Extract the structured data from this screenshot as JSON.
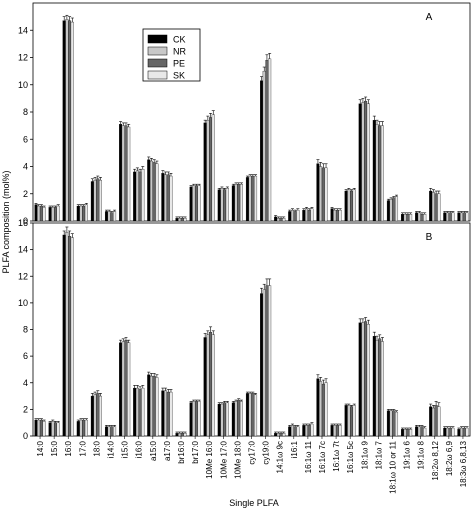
{
  "chart_data": {
    "type": "bar",
    "xlabel": "Single PLFA",
    "ylabel": "PLFA composition (mol%)",
    "categories": [
      "14:0",
      "15:0",
      "16:0",
      "17:0",
      "18:0",
      "i14:0",
      "i15:0",
      "i16:0",
      "a15:0",
      "a17:0",
      "br16:0",
      "br17:0",
      "10Me 16:0",
      "10Me 17:0",
      "10Me 18:0",
      "cy17:0",
      "cy19:0",
      "14:1ω 9c",
      "i16:1",
      "16:1ω 11",
      "16:1ω 7c",
      "16:1ω 7t",
      "16:1ω 5c",
      "18:1ω 9",
      "18:1ω 7",
      "18:1ω 10 or 11",
      "19:1ω 6",
      "19:1ω 8",
      "18:2ω 8,12",
      "18:2ω 6,9",
      "18:3ω 6,8,13"
    ],
    "series_names": [
      "CK",
      "NR",
      "PE",
      "SK"
    ],
    "colors": {
      "CK": "#000000",
      "NR": "#c8c8c8",
      "PE": "#666666",
      "SK": "#e8e8e8"
    },
    "legend_position": "top-left (panel A)",
    "panels": [
      {
        "letter": "A",
        "ylim": [
          0,
          16
        ],
        "yticks": [
          0,
          2,
          4,
          6,
          8,
          10,
          12,
          14
        ],
        "series": [
          {
            "name": "CK",
            "values": [
              1.2,
              1.0,
              14.7,
              1.1,
              2.9,
              0.7,
              7.1,
              3.6,
              4.5,
              3.5,
              0.2,
              2.5,
              7.2,
              2.3,
              2.6,
              3.2,
              10.3,
              0.3,
              0.7,
              0.8,
              4.2,
              0.9,
              2.2,
              8.6,
              7.4,
              1.5,
              0.5,
              0.6,
              2.2,
              0.6,
              0.6
            ],
            "errors": [
              0.1,
              0.1,
              0.3,
              0.1,
              0.2,
              0.1,
              0.2,
              0.2,
              0.2,
              0.2,
              0.1,
              0.1,
              0.2,
              0.1,
              0.1,
              0.1,
              0.3,
              0.1,
              0.1,
              0.1,
              0.3,
              0.1,
              0.1,
              0.3,
              0.3,
              0.1,
              0.1,
              0.1,
              0.2,
              0.1,
              0.1
            ]
          },
          {
            "name": "NR",
            "values": [
              1.1,
              1.0,
              14.8,
              1.1,
              3.0,
              0.7,
              7.0,
              3.7,
              4.4,
              3.4,
              0.2,
              2.6,
              7.4,
              2.4,
              2.7,
              3.3,
              11.0,
              0.2,
              0.8,
              0.9,
              4.0,
              0.8,
              2.3,
              8.7,
              7.1,
              1.6,
              0.5,
              0.6,
              2.1,
              0.6,
              0.6
            ],
            "errors": [
              0.1,
              0.1,
              0.3,
              0.1,
              0.2,
              0.1,
              0.2,
              0.2,
              0.2,
              0.2,
              0.1,
              0.1,
              0.3,
              0.1,
              0.1,
              0.1,
              0.3,
              0.1,
              0.1,
              0.1,
              0.3,
              0.1,
              0.1,
              0.3,
              0.3,
              0.1,
              0.1,
              0.1,
              0.2,
              0.1,
              0.1
            ]
          },
          {
            "name": "PE",
            "values": [
              1.1,
              1.0,
              14.7,
              1.1,
              3.1,
              0.6,
              7.0,
              3.6,
              4.3,
              3.4,
              0.2,
              2.6,
              7.6,
              2.3,
              2.7,
              3.3,
              11.8,
              0.2,
              0.7,
              0.8,
              3.9,
              0.8,
              2.2,
              8.8,
              7.0,
              1.7,
              0.5,
              0.5,
              2.0,
              0.6,
              0.6
            ],
            "errors": [
              0.1,
              0.1,
              0.3,
              0.1,
              0.2,
              0.1,
              0.2,
              0.2,
              0.2,
              0.2,
              0.1,
              0.1,
              0.3,
              0.1,
              0.1,
              0.1,
              0.4,
              0.1,
              0.1,
              0.1,
              0.3,
              0.1,
              0.1,
              0.3,
              0.3,
              0.1,
              0.1,
              0.1,
              0.2,
              0.1,
              0.1
            ]
          },
          {
            "name": "SK",
            "values": [
              1.0,
              1.1,
              14.6,
              1.2,
              3.0,
              0.7,
              6.9,
              3.8,
              4.2,
              3.3,
              0.2,
              2.6,
              7.8,
              2.4,
              2.7,
              3.3,
              11.9,
              0.2,
              0.8,
              0.9,
              3.9,
              0.8,
              2.3,
              8.6,
              7.0,
              1.8,
              0.5,
              0.5,
              2.0,
              0.6,
              0.6
            ],
            "errors": [
              0.1,
              0.1,
              0.3,
              0.1,
              0.2,
              0.1,
              0.2,
              0.2,
              0.2,
              0.2,
              0.1,
              0.1,
              0.3,
              0.1,
              0.1,
              0.1,
              0.4,
              0.1,
              0.1,
              0.1,
              0.3,
              0.1,
              0.1,
              0.3,
              0.3,
              0.1,
              0.1,
              0.1,
              0.2,
              0.1,
              0.1
            ]
          }
        ]
      },
      {
        "letter": "B",
        "ylim": [
          0,
          16
        ],
        "yticks": [
          0,
          2,
          4,
          6,
          8,
          10,
          12,
          14,
          16
        ],
        "series": [
          {
            "name": "CK",
            "values": [
              1.2,
              1.0,
              15.1,
              1.1,
              3.0,
              0.7,
              7.0,
              3.6,
              4.6,
              3.4,
              0.2,
              2.5,
              7.4,
              2.4,
              2.5,
              3.2,
              10.7,
              0.2,
              0.7,
              0.8,
              4.3,
              0.8,
              2.3,
              8.5,
              7.5,
              1.9,
              0.5,
              0.7,
              2.2,
              0.6,
              0.5
            ],
            "errors": [
              0.1,
              0.1,
              0.3,
              0.1,
              0.2,
              0.1,
              0.2,
              0.2,
              0.2,
              0.2,
              0.1,
              0.1,
              0.3,
              0.1,
              0.1,
              0.1,
              0.4,
              0.1,
              0.1,
              0.1,
              0.3,
              0.1,
              0.1,
              0.3,
              0.3,
              0.1,
              0.1,
              0.1,
              0.2,
              0.1,
              0.1
            ]
          },
          {
            "name": "NR",
            "values": [
              1.2,
              1.1,
              15.3,
              1.2,
              3.1,
              0.7,
              7.1,
              3.6,
              4.5,
              3.4,
              0.2,
              2.6,
              7.6,
              2.4,
              2.6,
              3.2,
              11.0,
              0.2,
              0.8,
              0.8,
              4.1,
              0.8,
              2.3,
              8.5,
              7.2,
              1.9,
              0.5,
              0.7,
              2.1,
              0.6,
              0.6
            ],
            "errors": [
              0.1,
              0.1,
              0.4,
              0.1,
              0.2,
              0.1,
              0.2,
              0.2,
              0.2,
              0.2,
              0.1,
              0.1,
              0.3,
              0.1,
              0.1,
              0.1,
              0.4,
              0.1,
              0.1,
              0.1,
              0.3,
              0.1,
              0.1,
              0.3,
              0.3,
              0.1,
              0.1,
              0.1,
              0.2,
              0.1,
              0.1
            ]
          },
          {
            "name": "PE",
            "values": [
              1.2,
              1.0,
              15.0,
              1.2,
              3.2,
              0.7,
              7.2,
              3.5,
              4.5,
              3.3,
              0.2,
              2.6,
              7.8,
              2.5,
              2.7,
              3.2,
              11.3,
              0.2,
              0.7,
              0.8,
              3.9,
              0.8,
              2.2,
              8.6,
              7.3,
              1.9,
              0.5,
              0.7,
              2.3,
              0.6,
              0.6
            ],
            "errors": [
              0.1,
              0.1,
              0.4,
              0.1,
              0.2,
              0.1,
              0.2,
              0.2,
              0.2,
              0.2,
              0.1,
              0.1,
              0.4,
              0.1,
              0.1,
              0.1,
              0.5,
              0.1,
              0.1,
              0.1,
              0.3,
              0.1,
              0.1,
              0.3,
              0.3,
              0.1,
              0.1,
              0.1,
              0.3,
              0.1,
              0.1
            ]
          },
          {
            "name": "SK",
            "values": [
              1.1,
              1.0,
              14.9,
              1.2,
              3.0,
              0.7,
              7.0,
              3.6,
              4.4,
              3.3,
              0.2,
              2.6,
              7.6,
              2.5,
              2.6,
              3.1,
              11.3,
              0.2,
              0.7,
              0.9,
              4.0,
              0.8,
              2.3,
              8.4,
              7.1,
              1.8,
              0.5,
              0.6,
              2.2,
              0.6,
              0.6
            ],
            "errors": [
              0.1,
              0.1,
              0.3,
              0.1,
              0.2,
              0.1,
              0.2,
              0.2,
              0.2,
              0.2,
              0.1,
              0.1,
              0.3,
              0.1,
              0.1,
              0.1,
              0.5,
              0.1,
              0.1,
              0.1,
              0.3,
              0.1,
              0.1,
              0.3,
              0.3,
              0.1,
              0.1,
              0.1,
              0.3,
              0.1,
              0.1
            ]
          }
        ]
      }
    ]
  }
}
